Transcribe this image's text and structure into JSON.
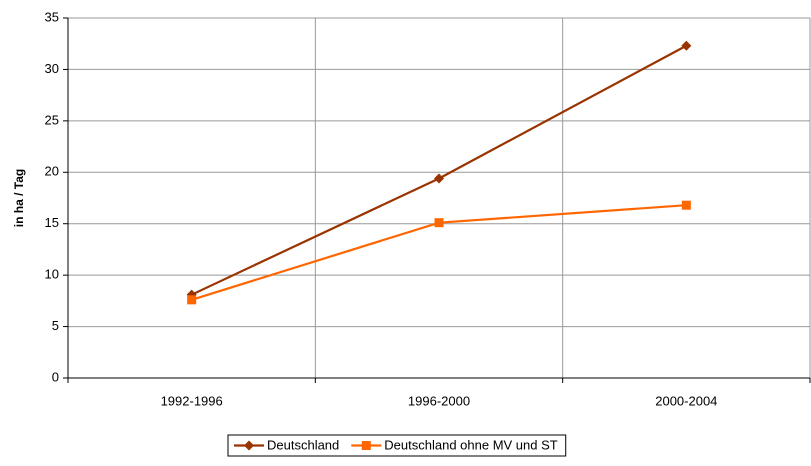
{
  "chart_data": {
    "type": "line",
    "y_label": "in ha / Tag",
    "categories": [
      "1992-1996",
      "1996-2000",
      "2000-2004"
    ],
    "series": [
      {
        "name": "Deutschland",
        "color": "#993300",
        "marker": "diamond",
        "values": [
          8.1,
          19.4,
          32.3
        ]
      },
      {
        "name": "Deutschland ohne MV und ST",
        "color": "#ff6600",
        "marker": "square",
        "values": [
          7.6,
          15.1,
          16.8
        ]
      }
    ],
    "ylim": [
      0,
      35
    ],
    "yticks": [
      0,
      5,
      10,
      15,
      20,
      25,
      30,
      35
    ],
    "grid": true,
    "legend": "bottom"
  }
}
